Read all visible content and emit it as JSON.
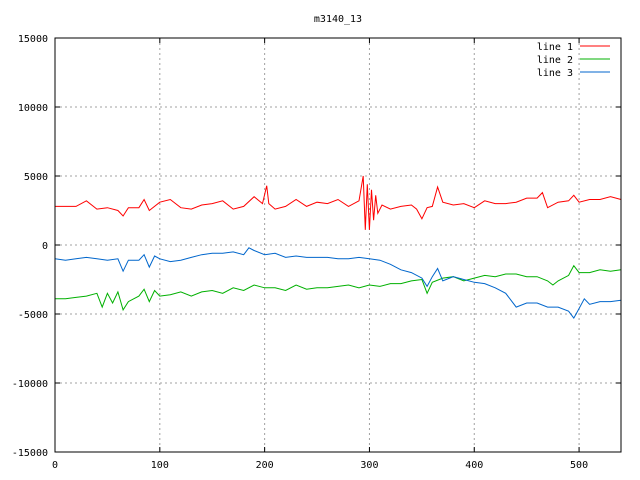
{
  "chart_data": {
    "type": "line",
    "title": "m3140_13",
    "xlim": [
      0,
      540
    ],
    "ylim": [
      -15000,
      15000
    ],
    "x_ticks": [
      "0",
      "100",
      "200",
      "300",
      "400",
      "500"
    ],
    "y_ticks": [
      "15000",
      "10000",
      "5000",
      "0",
      "-5000",
      "-10000",
      "-15000"
    ],
    "x_tick_values": [
      0,
      100,
      200,
      300,
      400,
      500
    ],
    "y_tick_values": [
      15000,
      10000,
      5000,
      0,
      -5000,
      -10000,
      -15000
    ],
    "grid": true,
    "legend_position": "top-right",
    "series": [
      {
        "name": "line 1",
        "color": "#ff0000",
        "points": [
          [
            0,
            2800
          ],
          [
            10,
            2800
          ],
          [
            20,
            2800
          ],
          [
            30,
            3200
          ],
          [
            40,
            2600
          ],
          [
            50,
            2700
          ],
          [
            60,
            2500
          ],
          [
            65,
            2100
          ],
          [
            70,
            2700
          ],
          [
            80,
            2700
          ],
          [
            85,
            3300
          ],
          [
            90,
            2500
          ],
          [
            100,
            3100
          ],
          [
            110,
            3300
          ],
          [
            120,
            2700
          ],
          [
            130,
            2600
          ],
          [
            140,
            2900
          ],
          [
            150,
            3000
          ],
          [
            160,
            3200
          ],
          [
            170,
            2600
          ],
          [
            180,
            2800
          ],
          [
            190,
            3500
          ],
          [
            198,
            3000
          ],
          [
            202,
            4300
          ],
          [
            204,
            3000
          ],
          [
            210,
            2600
          ],
          [
            220,
            2800
          ],
          [
            230,
            3300
          ],
          [
            240,
            2800
          ],
          [
            250,
            3100
          ],
          [
            260,
            3000
          ],
          [
            270,
            3300
          ],
          [
            280,
            2800
          ],
          [
            290,
            3200
          ],
          [
            294,
            5000
          ],
          [
            296,
            1100
          ],
          [
            298,
            4400
          ],
          [
            300,
            1100
          ],
          [
            302,
            4000
          ],
          [
            304,
            1800
          ],
          [
            306,
            3600
          ],
          [
            308,
            2300
          ],
          [
            312,
            2900
          ],
          [
            320,
            2600
          ],
          [
            330,
            2800
          ],
          [
            340,
            2900
          ],
          [
            345,
            2600
          ],
          [
            350,
            1900
          ],
          [
            355,
            2700
          ],
          [
            360,
            2800
          ],
          [
            365,
            4200
          ],
          [
            370,
            3100
          ],
          [
            380,
            2900
          ],
          [
            390,
            3000
          ],
          [
            400,
            2700
          ],
          [
            410,
            3200
          ],
          [
            420,
            3000
          ],
          [
            430,
            3000
          ],
          [
            440,
            3100
          ],
          [
            450,
            3400
          ],
          [
            460,
            3400
          ],
          [
            465,
            3800
          ],
          [
            470,
            2700
          ],
          [
            480,
            3100
          ],
          [
            490,
            3200
          ],
          [
            495,
            3600
          ],
          [
            500,
            3100
          ],
          [
            510,
            3300
          ],
          [
            520,
            3300
          ],
          [
            530,
            3500
          ],
          [
            540,
            3300
          ]
        ]
      },
      {
        "name": "line 2",
        "color": "#00b000",
        "points": [
          [
            0,
            -3900
          ],
          [
            10,
            -3900
          ],
          [
            20,
            -3800
          ],
          [
            30,
            -3700
          ],
          [
            40,
            -3500
          ],
          [
            45,
            -4500
          ],
          [
            50,
            -3500
          ],
          [
            55,
            -4200
          ],
          [
            60,
            -3400
          ],
          [
            65,
            -4700
          ],
          [
            70,
            -4100
          ],
          [
            80,
            -3700
          ],
          [
            85,
            -3200
          ],
          [
            90,
            -4100
          ],
          [
            95,
            -3300
          ],
          [
            100,
            -3700
          ],
          [
            110,
            -3600
          ],
          [
            120,
            -3400
          ],
          [
            130,
            -3700
          ],
          [
            140,
            -3400
          ],
          [
            150,
            -3300
          ],
          [
            160,
            -3500
          ],
          [
            170,
            -3100
          ],
          [
            180,
            -3300
          ],
          [
            190,
            -2900
          ],
          [
            200,
            -3100
          ],
          [
            210,
            -3100
          ],
          [
            220,
            -3300
          ],
          [
            230,
            -2900
          ],
          [
            240,
            -3200
          ],
          [
            250,
            -3100
          ],
          [
            260,
            -3100
          ],
          [
            270,
            -3000
          ],
          [
            280,
            -2900
          ],
          [
            290,
            -3100
          ],
          [
            300,
            -2900
          ],
          [
            310,
            -3000
          ],
          [
            320,
            -2800
          ],
          [
            330,
            -2800
          ],
          [
            340,
            -2600
          ],
          [
            350,
            -2500
          ],
          [
            355,
            -3500
          ],
          [
            360,
            -2700
          ],
          [
            370,
            -2400
          ],
          [
            380,
            -2300
          ],
          [
            390,
            -2600
          ],
          [
            400,
            -2400
          ],
          [
            410,
            -2200
          ],
          [
            420,
            -2300
          ],
          [
            430,
            -2100
          ],
          [
            440,
            -2100
          ],
          [
            450,
            -2300
          ],
          [
            460,
            -2300
          ],
          [
            470,
            -2600
          ],
          [
            475,
            -2900
          ],
          [
            480,
            -2600
          ],
          [
            490,
            -2200
          ],
          [
            495,
            -1500
          ],
          [
            500,
            -2000
          ],
          [
            510,
            -2000
          ],
          [
            520,
            -1800
          ],
          [
            530,
            -1900
          ],
          [
            540,
            -1800
          ]
        ]
      },
      {
        "name": "line 3",
        "color": "#0066cc",
        "points": [
          [
            0,
            -1000
          ],
          [
            10,
            -1100
          ],
          [
            20,
            -1000
          ],
          [
            30,
            -900
          ],
          [
            40,
            -1000
          ],
          [
            50,
            -1100
          ],
          [
            60,
            -1000
          ],
          [
            65,
            -1900
          ],
          [
            70,
            -1100
          ],
          [
            80,
            -1100
          ],
          [
            85,
            -700
          ],
          [
            90,
            -1600
          ],
          [
            95,
            -800
          ],
          [
            100,
            -1000
          ],
          [
            110,
            -1200
          ],
          [
            120,
            -1100
          ],
          [
            130,
            -900
          ],
          [
            140,
            -700
          ],
          [
            150,
            -600
          ],
          [
            160,
            -600
          ],
          [
            170,
            -500
          ],
          [
            180,
            -700
          ],
          [
            185,
            -200
          ],
          [
            190,
            -400
          ],
          [
            200,
            -700
          ],
          [
            210,
            -600
          ],
          [
            220,
            -900
          ],
          [
            230,
            -800
          ],
          [
            240,
            -900
          ],
          [
            250,
            -900
          ],
          [
            260,
            -900
          ],
          [
            270,
            -1000
          ],
          [
            280,
            -1000
          ],
          [
            290,
            -900
          ],
          [
            300,
            -1000
          ],
          [
            310,
            -1100
          ],
          [
            320,
            -1400
          ],
          [
            330,
            -1800
          ],
          [
            340,
            -2000
          ],
          [
            350,
            -2400
          ],
          [
            355,
            -3000
          ],
          [
            360,
            -2300
          ],
          [
            365,
            -1700
          ],
          [
            370,
            -2600
          ],
          [
            380,
            -2300
          ],
          [
            390,
            -2500
          ],
          [
            400,
            -2700
          ],
          [
            410,
            -2800
          ],
          [
            420,
            -3100
          ],
          [
            430,
            -3500
          ],
          [
            440,
            -4500
          ],
          [
            450,
            -4200
          ],
          [
            460,
            -4200
          ],
          [
            470,
            -4500
          ],
          [
            480,
            -4500
          ],
          [
            490,
            -4800
          ],
          [
            495,
            -5300
          ],
          [
            500,
            -4600
          ],
          [
            505,
            -3900
          ],
          [
            510,
            -4300
          ],
          [
            520,
            -4100
          ],
          [
            530,
            -4100
          ],
          [
            540,
            -4000
          ]
        ]
      }
    ]
  }
}
